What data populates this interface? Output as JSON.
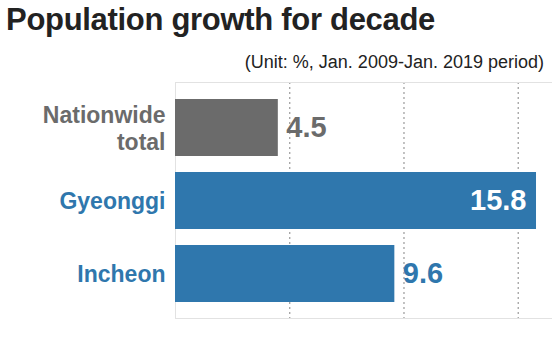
{
  "chart_data": {
    "type": "bar",
    "orientation": "horizontal",
    "title": "Population growth for decade",
    "subtitle": "(Unit: %, Jan. 2009-Jan. 2019 period)",
    "categories": [
      "Nationwide total",
      "Gyeonggi",
      "Incheon"
    ],
    "values": [
      4.5,
      15.8,
      9.6
    ],
    "colors": [
      "#6b6b6b",
      "#2f77ad",
      "#2f77ad"
    ],
    "xlim": [
      0,
      16.5
    ],
    "xticks": [
      5,
      10,
      15
    ],
    "grid": true,
    "data_labels": true,
    "tick_labels": false
  }
}
